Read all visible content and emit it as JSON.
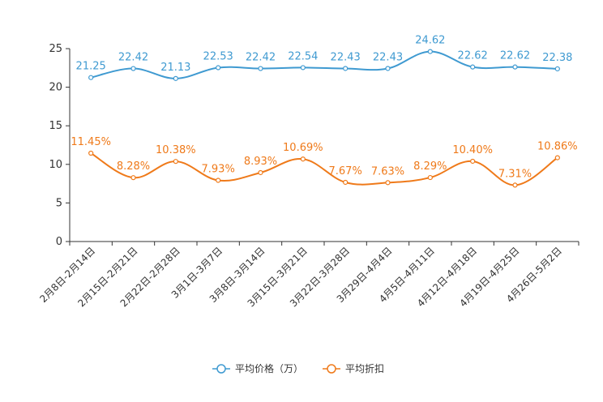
{
  "chart_data": {
    "type": "line",
    "title": "",
    "xlabel": "",
    "ylabel": "",
    "ylim": [
      0,
      25
    ],
    "yticks": [
      0,
      5,
      10,
      15,
      20,
      25
    ],
    "grid": false,
    "legend_position": "bottom",
    "categories": [
      "2月8日-2月14日",
      "2月15日-2月21日",
      "2月22日-2月28日",
      "3月1日-3月7日",
      "3月8日-3月14日",
      "3月15日-3月21日",
      "3月22日-3月28日",
      "3月29日-4月4日",
      "4月5日-4月11日",
      "4月12日-4月18日",
      "4月19日-4月25日",
      "4月26日-5月2日"
    ],
    "series": [
      {
        "name": "平均价格（万）",
        "color": "#3f9ad1",
        "values": [
          21.25,
          22.42,
          21.13,
          22.53,
          22.42,
          22.54,
          22.43,
          22.43,
          24.62,
          22.62,
          22.62,
          22.38
        ],
        "labels": [
          "21.25",
          "22.42",
          "21.13",
          "22.53",
          "22.42",
          "22.54",
          "22.43",
          "22.43",
          "24.62",
          "22.62",
          "22.62",
          "22.38"
        ]
      },
      {
        "name": "平均折扣",
        "color": "#ef7a1a",
        "values": [
          11.45,
          8.28,
          10.38,
          7.93,
          8.93,
          10.69,
          7.67,
          7.63,
          8.29,
          10.4,
          7.31,
          10.86
        ],
        "labels": [
          "11.45%",
          "8.28%",
          "10.38%",
          "7.93%",
          "8.93%",
          "10.69%",
          "7.67%",
          "7.63%",
          "8.29%",
          "10.40%",
          "7.31%",
          "10.86%"
        ]
      }
    ]
  }
}
